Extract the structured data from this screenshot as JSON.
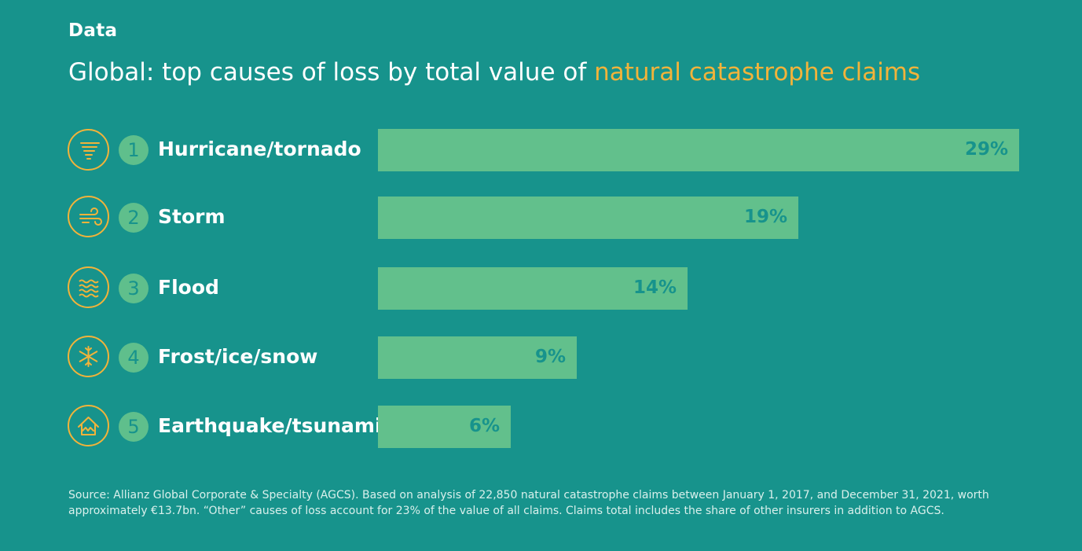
{
  "header": {
    "kicker": "Data",
    "title_plain": "Global: top causes of loss by total value of ",
    "title_highlight": "natural catastrophe claims"
  },
  "colors": {
    "background": "#17938c",
    "bar": "#62c08c",
    "rank_circle": "#5fbf8c",
    "accent": "#f2b33a",
    "value_text": "#17938c"
  },
  "chart_data": {
    "type": "bar",
    "orientation": "horizontal",
    "categories": [
      "Hurricane/tornado",
      "Storm",
      "Flood",
      "Frost/ice/snow",
      "Earthquake/tsunami"
    ],
    "ranks": [
      "1",
      "2",
      "3",
      "4",
      "5"
    ],
    "values": [
      29,
      19,
      14,
      9,
      6
    ],
    "value_labels": [
      "29%",
      "19%",
      "14%",
      "9%",
      "6%"
    ],
    "icons": [
      "tornado-icon",
      "wind-icon",
      "waves-icon",
      "snowflake-icon",
      "earthquake-house-icon"
    ],
    "unit": "%",
    "xlim": [
      0,
      29
    ],
    "grid": false,
    "legend": "none"
  },
  "footer": {
    "source": "Source: Allianz Global Corporate & Specialty (AGCS). Based on analysis of 22,850 natural catastrophe claims between January 1, 2017, and December 31, 2021, worth approximately €13.7bn. “Other” causes of loss account for 23% of the value of all claims. Claims total includes the share of other insurers in addition to AGCS."
  }
}
